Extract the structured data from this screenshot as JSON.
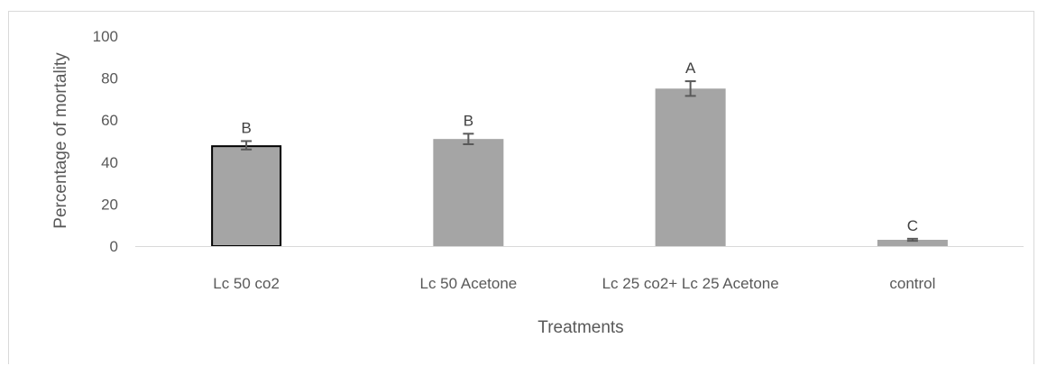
{
  "chart_data": {
    "type": "bar",
    "title": "",
    "xlabel": "Treatments",
    "ylabel": "Percentage of mortality",
    "ylim": [
      0,
      100
    ],
    "yticks": [
      0,
      20,
      40,
      60,
      80,
      100
    ],
    "grid": false,
    "categories": [
      "Lc 50 co2",
      "Lc 50 Acetone",
      "Lc 25 co2+ Lc 25 Acetone",
      "control"
    ],
    "values": [
      48,
      51,
      75,
      3
    ],
    "error": [
      2,
      2.5,
      3.5,
      0.5
    ],
    "significance_letters": [
      "B",
      "B",
      "A",
      "C"
    ],
    "colors": {
      "bar_fill": "#a5a5a5",
      "highlighted_bar_outline": "#000000",
      "error_bar": "#595959",
      "axis_line": "#d9d9d9",
      "text": "#595959"
    }
  }
}
